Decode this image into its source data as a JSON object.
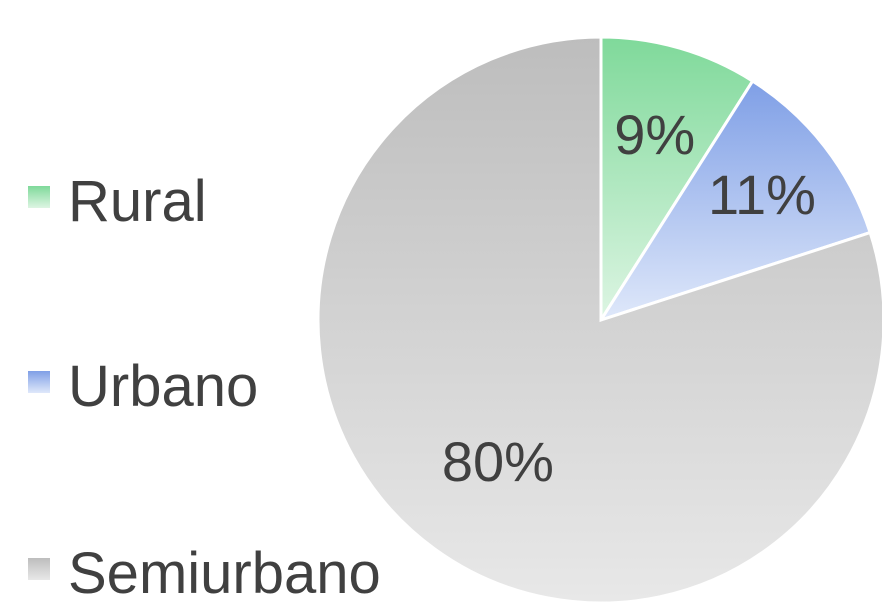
{
  "chart_data": {
    "type": "pie",
    "title": "",
    "categories": [
      "Rural",
      "Urbano",
      "Semiurbano"
    ],
    "values": [
      9,
      11,
      80
    ],
    "labels": [
      "9%",
      "11%",
      "80%"
    ],
    "colors": [
      "#a8e4b8",
      "#a9bff0",
      "#d0d0d0"
    ],
    "legend": {
      "position": "left",
      "entries": [
        "Rural",
        "Urbano",
        "Semiurbano"
      ]
    }
  }
}
